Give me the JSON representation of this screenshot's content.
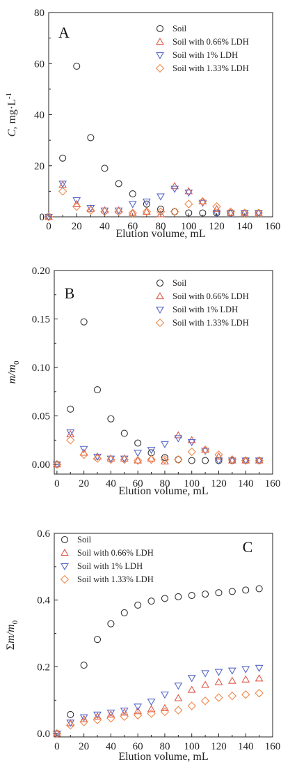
{
  "chart_data": [
    {
      "panel_label": "A",
      "type": "scatter",
      "ylabel_italic": "C",
      "ylabel_rest": ", mg·L",
      "ylabel_sup": "-1",
      "xlabel": "Elution volume, mL",
      "xlim": [
        0,
        160
      ],
      "ylim": [
        0,
        80
      ],
      "xticks": [
        0,
        20,
        40,
        60,
        80,
        100,
        120,
        140,
        160
      ],
      "yticks": [
        0,
        20,
        40,
        60,
        80
      ],
      "ytick_labels": [
        "0",
        "20",
        "40",
        "60",
        "80"
      ],
      "legend_position": "top-right",
      "series": [
        {
          "name": "Soil",
          "marker": "circle",
          "color": "#333333",
          "x": [
            0,
            10,
            20,
            30,
            40,
            50,
            60,
            70,
            80,
            90,
            100,
            110,
            120,
            130,
            140,
            150
          ],
          "y": [
            0,
            23,
            59,
            31,
            19,
            13,
            9,
            5,
            3,
            2,
            1.5,
            1.5,
            1.5,
            1.5,
            1.5,
            1.5
          ]
        },
        {
          "name": "Soil with 0.66% LDH",
          "marker": "triangle-up",
          "color": "#e05a4a",
          "x": [
            0,
            10,
            20,
            30,
            40,
            50,
            60,
            70,
            80,
            90,
            100,
            110,
            120,
            130,
            140,
            150
          ],
          "y": [
            0,
            12.5,
            5,
            3,
            2.5,
            2.5,
            1.5,
            2,
            1,
            12,
            10,
            6,
            3,
            1.5,
            1.5,
            1.5
          ]
        },
        {
          "name": "Soil with 1% LDH",
          "marker": "triangle-down",
          "color": "#5566c8",
          "x": [
            0,
            10,
            20,
            30,
            40,
            50,
            60,
            70,
            80,
            90,
            100,
            110,
            120,
            130,
            140,
            150
          ],
          "y": [
            0,
            13,
            6.5,
            3.5,
            2.5,
            2.5,
            5,
            6,
            8,
            11,
            9.5,
            5.5,
            1.5,
            1.5,
            1.5,
            1.5
          ]
        },
        {
          "name": "Soil with 1.33% LDH",
          "marker": "diamond",
          "color": "#f0884a",
          "x": [
            0,
            10,
            20,
            30,
            40,
            50,
            60,
            70,
            80,
            90,
            100,
            110,
            120,
            130,
            140,
            150
          ],
          "y": [
            0,
            10,
            4,
            2.5,
            2,
            2,
            1.5,
            2,
            2,
            2,
            5,
            6,
            4,
            2,
            1.5,
            1.5
          ]
        }
      ]
    },
    {
      "panel_label": "B",
      "type": "scatter",
      "ylabel_italic": "m/m",
      "ylabel_sub": "0",
      "xlabel": "Elution volume, mL",
      "xlim": [
        -2,
        160
      ],
      "ylim": [
        -0.01,
        0.2
      ],
      "xticks": [
        0,
        20,
        40,
        60,
        80,
        100,
        120,
        140,
        160
      ],
      "yticks": [
        0,
        0.05,
        0.1,
        0.15,
        0.2
      ],
      "ytick_labels": [
        "0.00",
        "0.05",
        "0.10",
        "0.15",
        "0.20"
      ],
      "legend_position": "top-right",
      "series": [
        {
          "name": "Soil",
          "marker": "circle",
          "color": "#333333",
          "x": [
            0,
            10,
            20,
            30,
            40,
            50,
            60,
            70,
            80,
            90,
            100,
            110,
            120,
            130,
            140,
            150
          ],
          "y": [
            0,
            0.057,
            0.147,
            0.077,
            0.047,
            0.032,
            0.022,
            0.012,
            0.007,
            0.005,
            0.004,
            0.004,
            0.004,
            0.004,
            0.004,
            0.004
          ]
        },
        {
          "name": "Soil with 0.66% LDH",
          "marker": "triangle-up",
          "color": "#e05a4a",
          "x": [
            0,
            10,
            20,
            30,
            40,
            50,
            60,
            70,
            80,
            90,
            100,
            110,
            120,
            130,
            140,
            150
          ],
          "y": [
            0,
            0.031,
            0.012,
            0.008,
            0.006,
            0.006,
            0.004,
            0.006,
            0.003,
            0.03,
            0.025,
            0.015,
            0.008,
            0.004,
            0.004,
            0.004
          ]
        },
        {
          "name": "Soil with 1% LDH",
          "marker": "triangle-down",
          "color": "#5566c8",
          "x": [
            0,
            10,
            20,
            30,
            40,
            50,
            60,
            70,
            80,
            90,
            100,
            110,
            120,
            130,
            140,
            150
          ],
          "y": [
            0,
            0.033,
            0.016,
            0.008,
            0.006,
            0.006,
            0.012,
            0.015,
            0.021,
            0.027,
            0.023,
            0.014,
            0.004,
            0.004,
            0.004,
            0.004
          ]
        },
        {
          "name": "Soil with 1.33% LDH",
          "marker": "diamond",
          "color": "#f0884a",
          "x": [
            0,
            10,
            20,
            30,
            40,
            50,
            60,
            70,
            80,
            90,
            100,
            110,
            120,
            130,
            140,
            150
          ],
          "y": [
            0,
            0.025,
            0.01,
            0.006,
            0.005,
            0.005,
            0.004,
            0.005,
            0.005,
            0.005,
            0.013,
            0.015,
            0.01,
            0.005,
            0.004,
            0.004
          ]
        }
      ]
    },
    {
      "panel_label": "C",
      "type": "scatter",
      "ylabel_pre": "Σ",
      "ylabel_italic": "m/m",
      "ylabel_sub": "0",
      "xlabel": "Elution volume, mL",
      "xlim": [
        -2,
        160
      ],
      "ylim": [
        -0.01,
        0.6
      ],
      "xticks": [
        0,
        20,
        40,
        60,
        80,
        100,
        120,
        140,
        160
      ],
      "yticks": [
        0,
        0.2,
        0.4,
        0.6
      ],
      "ytick_labels": [
        "0.0",
        "0.2",
        "0.4",
        "0.6"
      ],
      "legend_position": "top-left",
      "series": [
        {
          "name": "Soil",
          "marker": "circle",
          "color": "#333333",
          "x": [
            0,
            10,
            20,
            30,
            40,
            50,
            60,
            70,
            80,
            90,
            100,
            110,
            120,
            130,
            140,
            150
          ],
          "y": [
            0,
            0.057,
            0.205,
            0.282,
            0.329,
            0.362,
            0.385,
            0.397,
            0.405,
            0.41,
            0.414,
            0.418,
            0.422,
            0.426,
            0.43,
            0.434
          ]
        },
        {
          "name": "Soil with 0.66% LDH",
          "marker": "triangle-up",
          "color": "#e05a4a",
          "x": [
            0,
            10,
            20,
            30,
            40,
            50,
            60,
            70,
            80,
            90,
            100,
            110,
            120,
            130,
            140,
            150
          ],
          "y": [
            0,
            0.031,
            0.043,
            0.051,
            0.057,
            0.063,
            0.067,
            0.073,
            0.076,
            0.106,
            0.131,
            0.146,
            0.154,
            0.158,
            0.162,
            0.165
          ]
        },
        {
          "name": "Soil with 1% LDH",
          "marker": "triangle-down",
          "color": "#5566c8",
          "x": [
            0,
            10,
            20,
            30,
            40,
            50,
            60,
            70,
            80,
            90,
            100,
            110,
            120,
            130,
            140,
            150
          ],
          "y": [
            0,
            0.033,
            0.049,
            0.057,
            0.063,
            0.069,
            0.081,
            0.096,
            0.117,
            0.144,
            0.167,
            0.181,
            0.185,
            0.189,
            0.193,
            0.197
          ]
        },
        {
          "name": "Soil with 1.33% LDH",
          "marker": "diamond",
          "color": "#f0884a",
          "x": [
            0,
            10,
            20,
            30,
            40,
            50,
            60,
            70,
            80,
            90,
            100,
            110,
            120,
            130,
            140,
            150
          ],
          "y": [
            0,
            0.025,
            0.035,
            0.041,
            0.046,
            0.051,
            0.055,
            0.06,
            0.065,
            0.07,
            0.083,
            0.098,
            0.108,
            0.113,
            0.117,
            0.121
          ]
        }
      ]
    }
  ]
}
